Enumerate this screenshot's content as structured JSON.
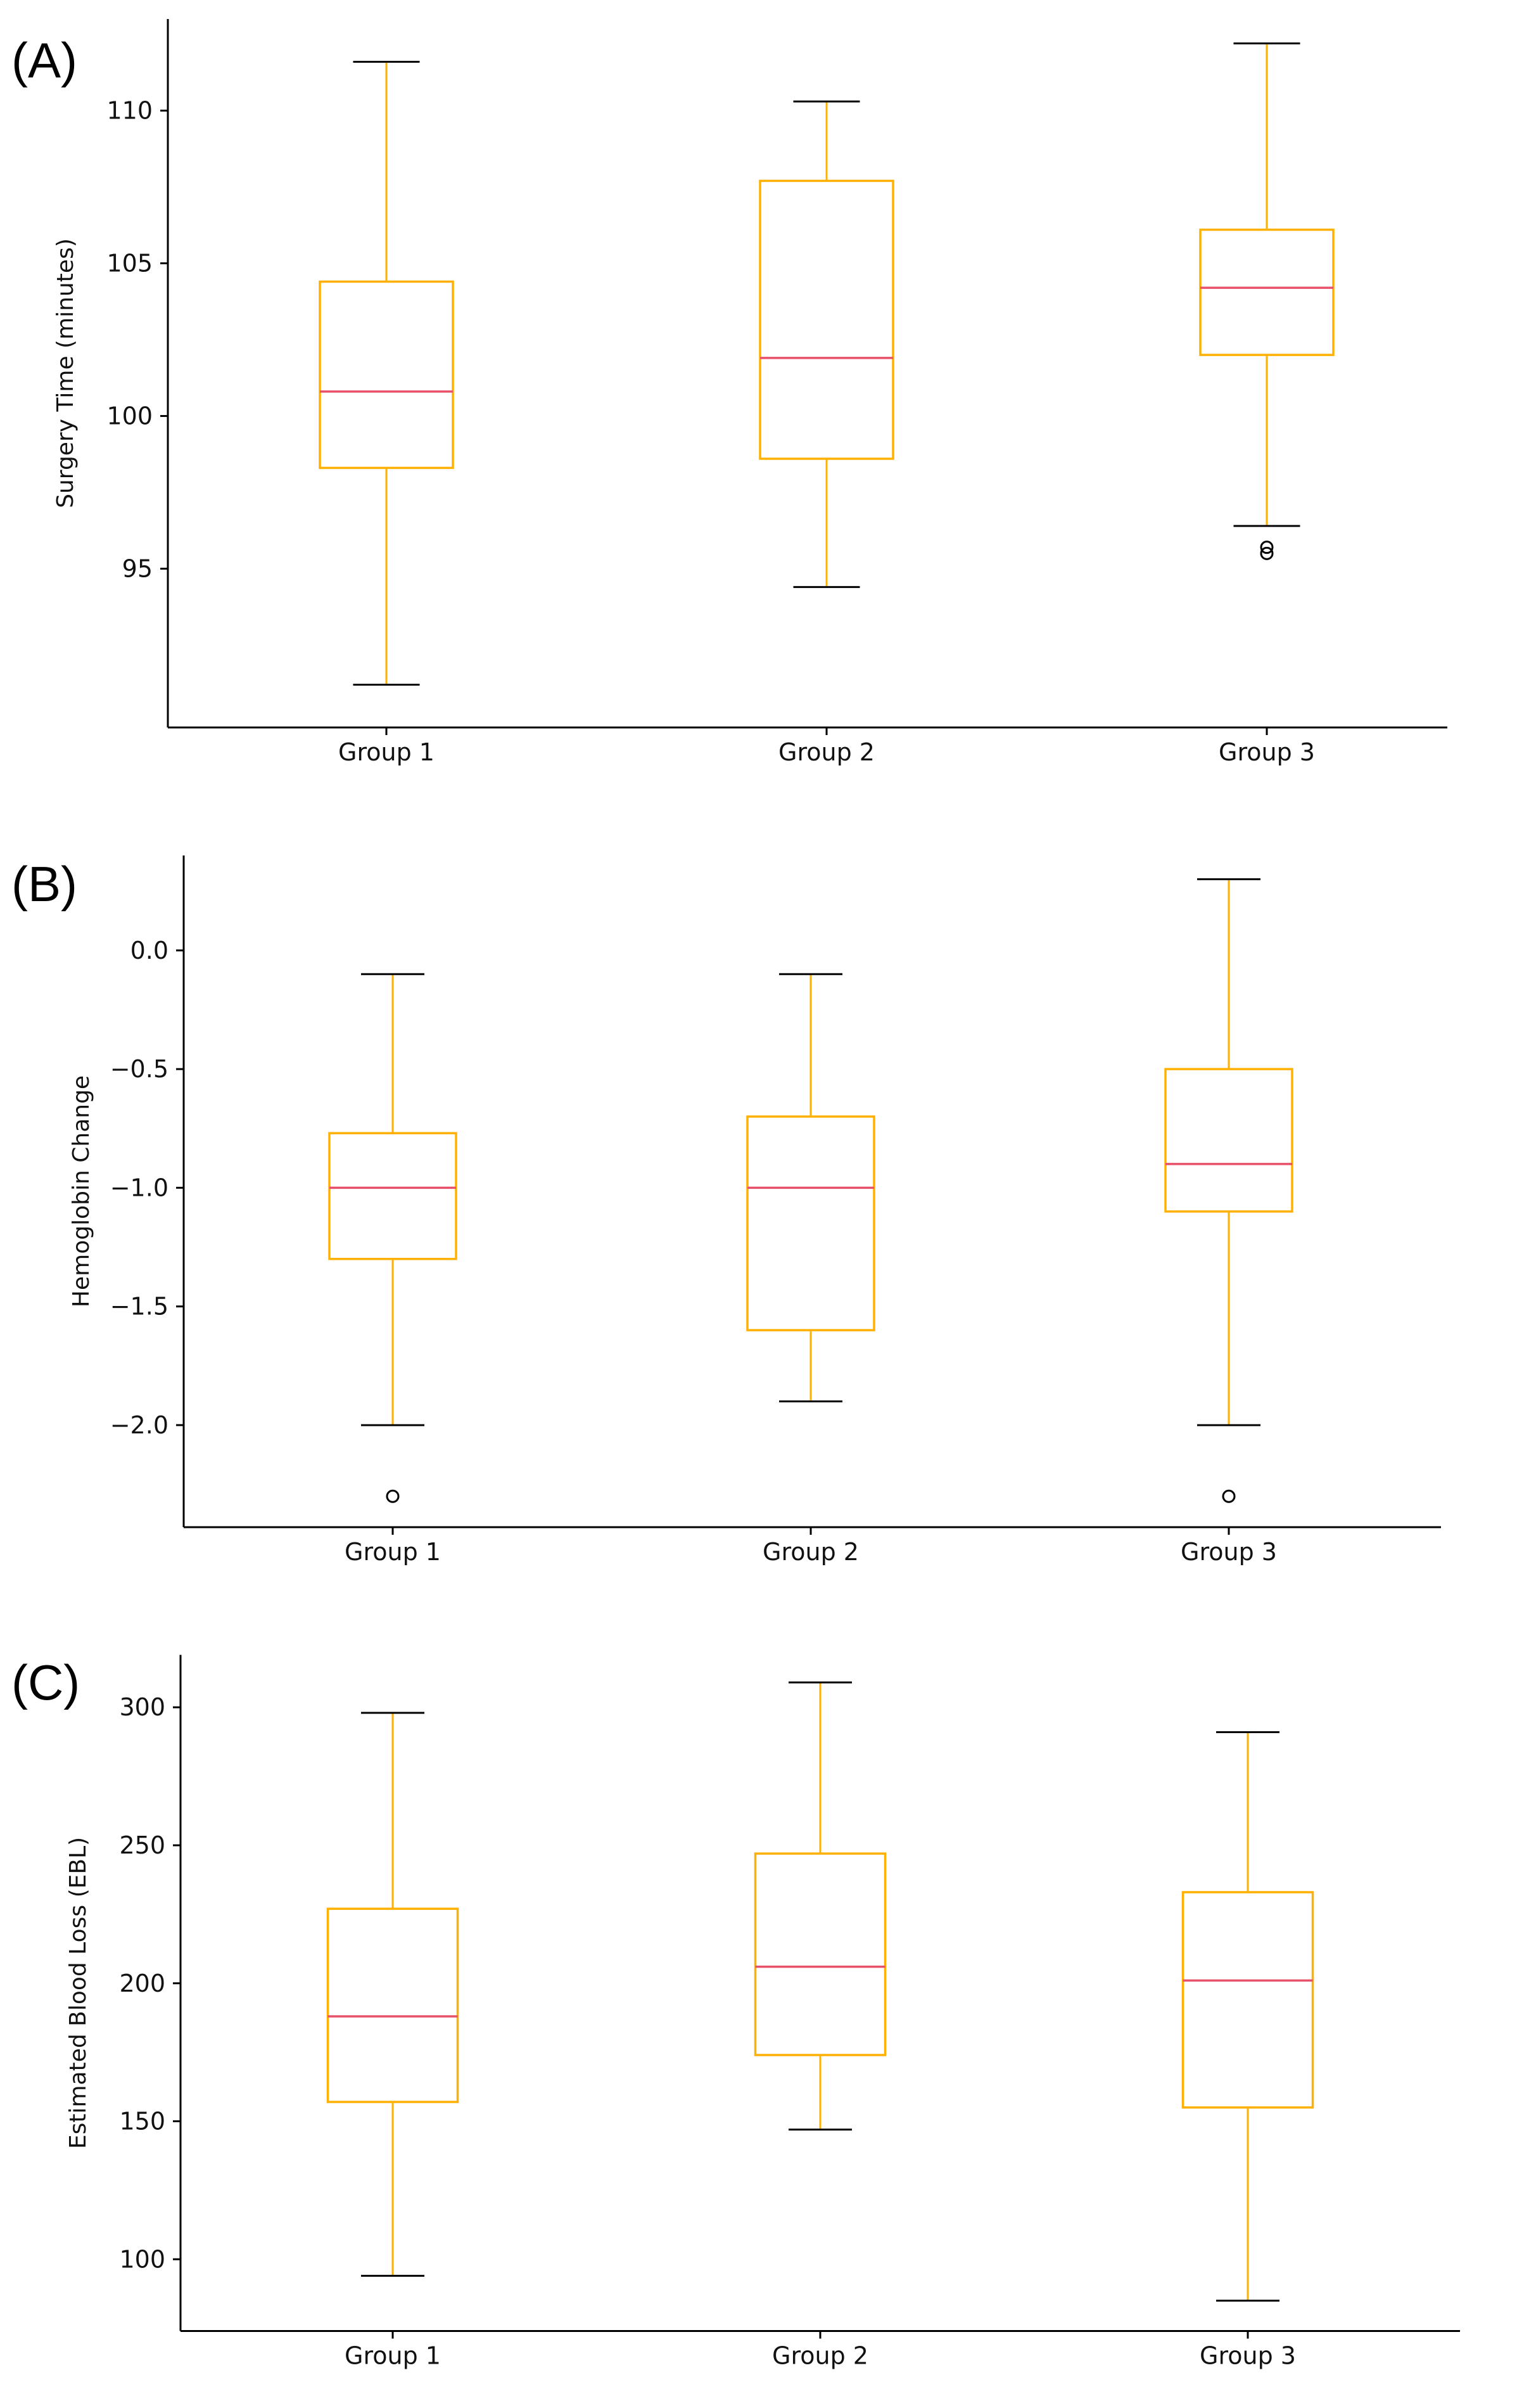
{
  "figure": {
    "panels": [
      "(A)",
      "(B)",
      "(C)"
    ]
  },
  "colors": {
    "box": "#FFB000",
    "median": "#E8506A",
    "caps": "#000000",
    "axes": "#000000",
    "outlier": "#000000"
  },
  "chart_data": [
    {
      "type": "box",
      "panel_label": "(A)",
      "title": "",
      "xlabel": "",
      "ylabel": "Surgery Time (minutes)",
      "categories": [
        "Group 1",
        "Group 2",
        "Group 3"
      ],
      "ylim": [
        89.8,
        113.0
      ],
      "yticks": [
        95,
        100,
        105,
        110
      ],
      "ytick_labels": [
        "95",
        "100",
        "105",
        "110"
      ],
      "grid": false,
      "boxes": [
        {
          "name": "Group 1",
          "whislo": 91.2,
          "q1": 98.3,
          "med": 100.8,
          "q3": 104.4,
          "whishi": 111.6,
          "fliers": []
        },
        {
          "name": "Group 2",
          "whislo": 94.4,
          "q1": 98.6,
          "med": 101.9,
          "q3": 107.7,
          "whishi": 110.3,
          "fliers": []
        },
        {
          "name": "Group 3",
          "whislo": 96.4,
          "q1": 102.0,
          "med": 104.2,
          "q3": 106.1,
          "whishi": 112.2,
          "fliers": [
            95.5,
            95.7
          ]
        }
      ]
    },
    {
      "type": "box",
      "panel_label": "(B)",
      "title": "",
      "xlabel": "",
      "ylabel": "Hemoglobin Change",
      "categories": [
        "Group 1",
        "Group 2",
        "Group 3"
      ],
      "ylim": [
        -2.43,
        0.4
      ],
      "yticks": [
        -2.0,
        -1.5,
        -1.0,
        -0.5,
        0.0
      ],
      "ytick_labels": [
        "−2.0",
        "−1.5",
        "−1.0",
        "−0.5",
        "0.0"
      ],
      "grid": false,
      "boxes": [
        {
          "name": "Group 1",
          "whislo": -2.0,
          "q1": -1.3,
          "med": -1.0,
          "q3": -0.77,
          "whishi": -0.1,
          "fliers": [
            -2.3
          ]
        },
        {
          "name": "Group 2",
          "whislo": -1.9,
          "q1": -1.6,
          "med": -1.0,
          "q3": -0.7,
          "whishi": -0.1,
          "fliers": []
        },
        {
          "name": "Group 3",
          "whislo": -2.0,
          "q1": -1.1,
          "med": -0.9,
          "q3": -0.5,
          "whishi": 0.3,
          "fliers": [
            -2.3
          ]
        }
      ]
    },
    {
      "type": "box",
      "panel_label": "(C)",
      "title": "",
      "xlabel": "",
      "ylabel": "Estimated Blood Loss (EBL)",
      "categories": [
        "Group 1",
        "Group 2",
        "Group 3"
      ],
      "ylim": [
        74,
        319
      ],
      "yticks": [
        100,
        150,
        200,
        250,
        300
      ],
      "ytick_labels": [
        "100",
        "150",
        "200",
        "250",
        "300"
      ],
      "grid": false,
      "boxes": [
        {
          "name": "Group 1",
          "whislo": 94,
          "q1": 157,
          "med": 188,
          "q3": 227,
          "whishi": 298,
          "fliers": []
        },
        {
          "name": "Group 2",
          "whislo": 147,
          "q1": 174,
          "med": 206,
          "q3": 247,
          "whishi": 309,
          "fliers": []
        },
        {
          "name": "Group 3",
          "whislo": 85,
          "q1": 155,
          "med": 201,
          "q3": 233,
          "whishi": 291,
          "fliers": []
        }
      ]
    }
  ]
}
